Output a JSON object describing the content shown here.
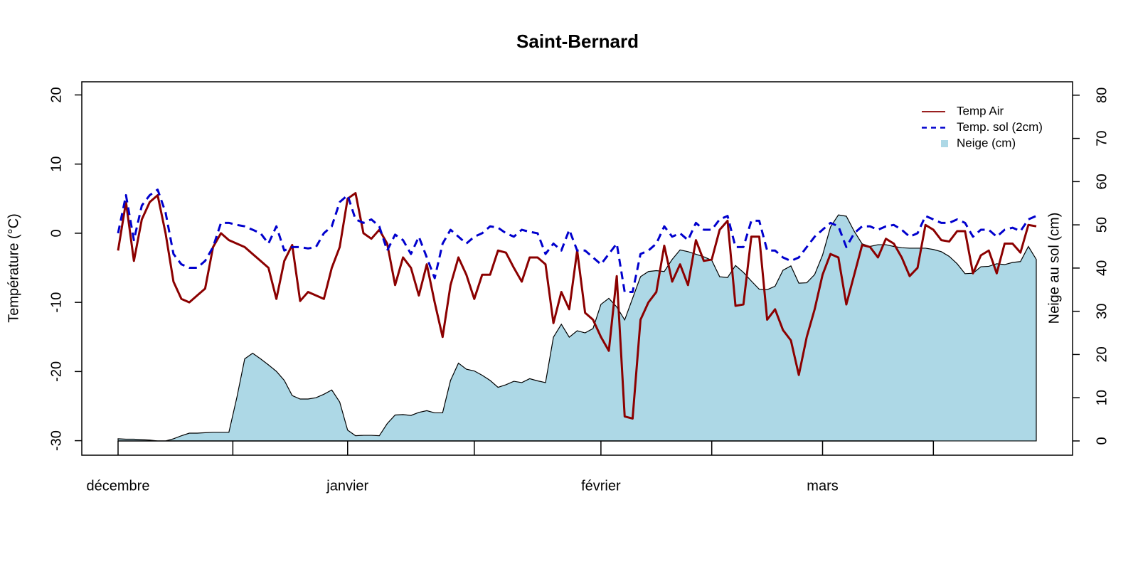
{
  "chart_data": {
    "type": "line",
    "title": "Saint-Bernard",
    "y_label": "Température (°C)",
    "y2_label": "Neige au sol (cm)",
    "categories": [
      "décembre",
      null,
      null,
      null,
      null,
      null,
      null,
      null,
      null,
      null,
      null,
      null,
      null,
      null,
      null,
      null,
      null,
      null,
      null,
      null,
      null,
      null,
      null,
      null,
      null,
      null,
      null,
      null,
      null,
      "janvier",
      null,
      null,
      null,
      null,
      null,
      null,
      null,
      null,
      null,
      null,
      null,
      null,
      null,
      null,
      null,
      null,
      null,
      null,
      null,
      null,
      null,
      null,
      null,
      null,
      null,
      null,
      null,
      null,
      null,
      null,
      null,
      "février",
      null,
      null,
      null,
      null,
      null,
      null,
      null,
      null,
      null,
      null,
      null,
      null,
      null,
      null,
      null,
      null,
      null,
      null,
      null,
      null,
      null,
      null,
      null,
      null,
      null,
      null,
      null,
      "mars",
      null,
      null,
      null,
      null,
      null,
      null,
      null,
      null,
      null,
      null,
      null,
      null,
      null,
      null,
      null,
      null,
      null,
      null,
      null,
      null,
      null,
      null,
      null,
      null,
      null,
      null,
      null
    ],
    "series": [
      {
        "name": "Temp Air",
        "color": "#8b0000",
        "dashed": false,
        "values": [
          -2.5,
          4.5,
          -4,
          2,
          4.5,
          5.5,
          0,
          -7,
          -9.5,
          -10,
          -9,
          -8,
          -2,
          0,
          -1,
          -1.5,
          -2,
          -3,
          -4,
          -5,
          -9.5,
          -4,
          -1.7,
          -9.8,
          -8.5,
          -9,
          -9.5,
          -5,
          -2,
          5,
          5.8,
          0,
          -0.8,
          0.5,
          -1.5,
          -7.5,
          -3.5,
          -5,
          -9,
          -4.5,
          -10,
          -15,
          -7.5,
          -3.5,
          -6,
          -9.5,
          -6,
          -6,
          -2.5,
          -2.8,
          -5,
          -7,
          -3.5,
          -3.5,
          -4.5,
          -13,
          -8.5,
          -11,
          -2.5,
          -11.5,
          -12.5,
          -15,
          -17,
          -6.2,
          -26.5,
          -26.8,
          -12.5,
          -10,
          -8.5,
          -1.8,
          -7,
          -4.5,
          -7.5,
          -1,
          -4,
          -3.8,
          0.5,
          1.8,
          -10.5,
          -10.3,
          -0.5,
          -0.5,
          -12.5,
          -11,
          -14,
          -15.5,
          -20.5,
          -15,
          -11,
          -6,
          -3,
          -3.5,
          -10.3,
          -6,
          -1.7,
          -2,
          -3.5,
          -0.8,
          -1.5,
          -3.5,
          -6.2,
          -5,
          1.2,
          0.5,
          -1,
          -1.2,
          0.3,
          0.3,
          -5.8,
          -3.2,
          -2.5,
          -5.8,
          -1.5,
          -1.5,
          -2.8,
          1.2,
          1
        ]
      },
      {
        "name": "Temp. sol (2cm)",
        "color": "#0000cd",
        "dashed": true,
        "values": [
          0,
          5.5,
          -1,
          4,
          5.5,
          6.3,
          3,
          -3,
          -4.5,
          -5,
          -5,
          -4,
          -2,
          1.5,
          1.5,
          1.2,
          1,
          0.5,
          0,
          -1.5,
          1,
          -2.5,
          -2,
          -2,
          -2.2,
          -2,
          0,
          1,
          4.5,
          5.5,
          2,
          1.5,
          2,
          1,
          -2.5,
          -0.2,
          -1,
          -3,
          -0.5,
          -3.5,
          -6.5,
          -1.5,
          0.5,
          -0.5,
          -1.5,
          -0.5,
          0,
          1,
          0.8,
          0,
          -0.5,
          0.5,
          0.2,
          0,
          -3,
          -1.5,
          -2.5,
          0.5,
          -2.5,
          -2.5,
          -3.5,
          -4.5,
          -3,
          -1.5,
          -8.5,
          -8.5,
          -3,
          -2.5,
          -1.5,
          1,
          -0.5,
          0,
          -1,
          1.5,
          0.5,
          0.5,
          2,
          2.5,
          -2,
          -2,
          1.8,
          1.8,
          -2.5,
          -2.5,
          -3.5,
          -4,
          -3.5,
          -2,
          -0.5,
          0.5,
          1.5,
          1,
          -2,
          0,
          1,
          1,
          0.5,
          1,
          1.2,
          0.5,
          -0.5,
          0,
          2.5,
          2,
          1.5,
          1.5,
          2,
          1.5,
          -0.5,
          0.5,
          0.5,
          -0.5,
          0.5,
          0.8,
          0.3,
          2,
          2.5
        ]
      },
      {
        "name": "Neige (cm)",
        "color": "#add8e6",
        "axis": "y2",
        "type": "area",
        "values": [
          0.5,
          0.4,
          0.4,
          0.3,
          0.2,
          0,
          0,
          0.5,
          1.2,
          1.8,
          1.8,
          1.9,
          2,
          2,
          2,
          10,
          19,
          20.3,
          19,
          17.6,
          16.1,
          14,
          10.5,
          9.7,
          9.7,
          10,
          10.8,
          11.8,
          9,
          2.5,
          1.2,
          1.3,
          1.3,
          1.2,
          4,
          6,
          6.1,
          5.9,
          6.6,
          7,
          6.5,
          6.5,
          14,
          18,
          16.6,
          16.2,
          15.2,
          14,
          12.4,
          13,
          13.8,
          13.5,
          14.4,
          13.9,
          13.5,
          24,
          27,
          24,
          25.5,
          25,
          26,
          31.6,
          33,
          31,
          28,
          33,
          38,
          39.2,
          39.4,
          39.2,
          42,
          44.2,
          43.8,
          43.2,
          42.6,
          41.8,
          38,
          37.8,
          40.6,
          39,
          37,
          35.1,
          35,
          35.8,
          39.5,
          40.5,
          36.5,
          36.6,
          38.5,
          43,
          49.5,
          52.3,
          52,
          48.5,
          45.6,
          45,
          45.4,
          45.4,
          45,
          44.7,
          44.6,
          44.6,
          44.6,
          44.3,
          43.8,
          42.7,
          41,
          38.7,
          38.8,
          40.3,
          40.4,
          41,
          40.8,
          41.3,
          41.5,
          45,
          42
        ]
      }
    ],
    "ylim": [
      -32.1,
      21.9
    ],
    "yticks": [
      -30,
      -20,
      -10,
      0,
      10,
      20
    ],
    "y2lim": [
      -3.3,
      83.1
    ],
    "y2ticks": [
      0,
      10,
      20,
      30,
      40,
      50,
      60,
      70,
      80
    ],
    "legend": "topright",
    "grid": false
  }
}
